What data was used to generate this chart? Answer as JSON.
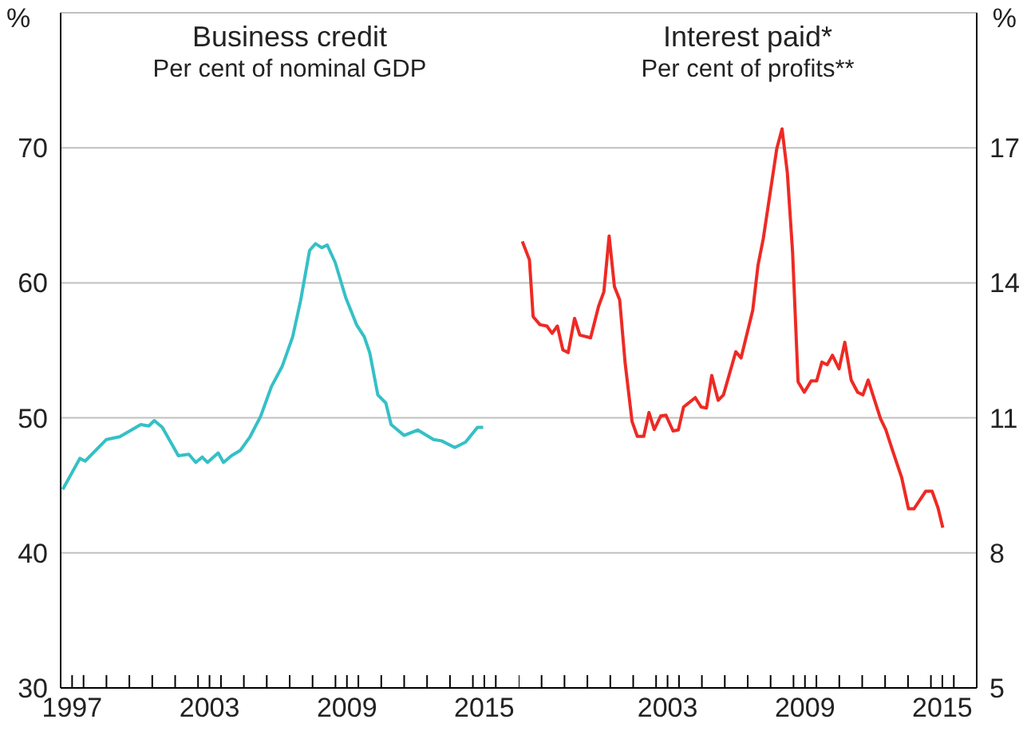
{
  "chart_data": [
    {
      "type": "line",
      "title": "Business credit",
      "subtitle": "Per cent of nominal GDP",
      "ylabel": "%",
      "grid": "y",
      "xlim": [
        1996.5,
        2016.5
      ],
      "xticks": [
        {
          "value": 1996.5,
          "label": null
        },
        1997,
        {
          "value": 1997.5,
          "label": null
        },
        {
          "value": 1998.5,
          "label": null
        },
        {
          "value": 1999.5,
          "label": null
        },
        {
          "value": 2000.5,
          "label": null
        },
        {
          "value": 2001.5,
          "label": null
        },
        {
          "value": 2002.5,
          "label": null
        },
        2003,
        {
          "value": 2003.5,
          "label": null
        },
        {
          "value": 2004.5,
          "label": null
        },
        {
          "value": 2005.5,
          "label": null
        },
        {
          "value": 2006.5,
          "label": null
        },
        {
          "value": 2007.5,
          "label": null
        },
        {
          "value": 2008.5,
          "label": null
        },
        2009,
        {
          "value": 2009.5,
          "label": null
        },
        {
          "value": 2010.5,
          "label": null
        },
        {
          "value": 2011.5,
          "label": null
        },
        {
          "value": 2012.5,
          "label": null
        },
        {
          "value": 2013.5,
          "label": null
        },
        {
          "value": 2014.5,
          "label": null
        },
        2015,
        {
          "value": 2015.5,
          "label": null
        }
      ],
      "ylim": [
        30,
        80
      ],
      "yticks": [
        30,
        40,
        50,
        60,
        70
      ],
      "series": [
        {
          "color": "#35c0c6",
          "x": [
            1996.59,
            1997.34,
            1997.57,
            1998.5,
            1999.08,
            2000.0,
            2000.35,
            2000.59,
            2000.94,
            2001.64,
            2002.1,
            2002.4,
            2002.68,
            2002.91,
            2003.38,
            2003.61,
            2003.96,
            2004.35,
            2004.77,
            2005.23,
            2005.7,
            2006.17,
            2006.63,
            2006.98,
            2007.37,
            2007.63,
            2007.9,
            2008.14,
            2008.49,
            2008.95,
            2009.42,
            2009.76,
            2010.0,
            2010.35,
            2010.7,
            2010.93,
            2011.5,
            2012.09,
            2012.78,
            2013.13,
            2013.71,
            2014.18,
            2014.7,
            2014.95
          ],
          "values": [
            44.7,
            47.0,
            46.8,
            48.4,
            48.6,
            49.5,
            49.4,
            49.8,
            49.3,
            47.2,
            47.3,
            46.7,
            47.1,
            46.7,
            47.4,
            46.7,
            47.2,
            47.6,
            48.6,
            50.1,
            52.3,
            53.8,
            56.0,
            58.7,
            62.4,
            62.9,
            62.6,
            62.8,
            61.5,
            58.9,
            56.9,
            56.0,
            54.8,
            51.7,
            51.1,
            49.5,
            48.7,
            49.1,
            48.4,
            48.3,
            47.8,
            48.2,
            49.3,
            49.3
          ]
        }
      ]
    },
    {
      "type": "line",
      "title": "Interest paid*",
      "subtitle": "Per cent of profits**",
      "y2label": "%",
      "grid": "y",
      "xlim": [
        1996.5,
        2016.5
      ],
      "xticks": [
        {
          "value": 1996.5,
          "label": null
        },
        {
          "value": 1997.5,
          "label": null
        },
        {
          "value": 1998.5,
          "label": null
        },
        {
          "value": 1999.5,
          "label": null
        },
        {
          "value": 2000.5,
          "label": null
        },
        {
          "value": 2001.5,
          "label": null
        },
        {
          "value": 2002.5,
          "label": null
        },
        2003,
        {
          "value": 2003.5,
          "label": null
        },
        {
          "value": 2004.5,
          "label": null
        },
        {
          "value": 2005.5,
          "label": null
        },
        {
          "value": 2006.5,
          "label": null
        },
        {
          "value": 2007.5,
          "label": null
        },
        {
          "value": 2008.5,
          "label": null
        },
        2009,
        {
          "value": 2009.5,
          "label": null
        },
        {
          "value": 2010.5,
          "label": null
        },
        {
          "value": 2011.5,
          "label": null
        },
        {
          "value": 2012.5,
          "label": null
        },
        {
          "value": 2013.5,
          "label": null
        },
        {
          "value": 2014.5,
          "label": null
        },
        2015,
        {
          "value": 2015.5,
          "label": null
        }
      ],
      "y2lim": [
        5,
        20
      ],
      "y2ticks": [
        5,
        8,
        11,
        14,
        17
      ],
      "series": [
        {
          "color": "#ee2a24",
          "axis": "y2",
          "x": [
            1996.66,
            1996.97,
            1997.13,
            1997.43,
            1997.73,
            1997.96,
            1998.19,
            1998.43,
            1998.66,
            1998.94,
            1999.17,
            1999.64,
            1999.99,
            2000.22,
            2000.45,
            2000.68,
            2000.91,
            2001.15,
            2001.45,
            2001.68,
            2001.96,
            2002.19,
            2002.42,
            2002.7,
            2002.93,
            2003.24,
            2003.47,
            2003.7,
            2004.21,
            2004.47,
            2004.7,
            2004.93,
            2005.21,
            2005.44,
            2005.98,
            2006.21,
            2006.72,
            2006.95,
            2007.18,
            2007.77,
            2008.0,
            2008.23,
            2008.46,
            2008.7,
            2008.97,
            2009.27,
            2009.51,
            2009.74,
            2009.97,
            2010.2,
            2010.49,
            2010.74,
            2011.02,
            2011.3,
            2011.53,
            2011.76,
            2012.3,
            2012.53,
            2012.83,
            2013.22,
            2013.52,
            2013.76,
            2014.27,
            2014.55,
            2014.81,
            2015.02
          ],
          "values": [
            14.92,
            14.51,
            13.25,
            13.07,
            13.04,
            12.88,
            13.04,
            12.51,
            12.45,
            13.21,
            12.84,
            12.78,
            13.48,
            13.8,
            15.04,
            13.92,
            13.62,
            12.21,
            10.92,
            10.59,
            10.59,
            11.12,
            10.74,
            11.04,
            11.06,
            10.71,
            10.73,
            11.24,
            11.45,
            11.24,
            11.22,
            11.94,
            11.39,
            11.51,
            12.47,
            12.33,
            13.39,
            14.39,
            14.98,
            16.98,
            17.42,
            16.45,
            14.68,
            11.8,
            11.57,
            11.82,
            11.82,
            12.24,
            12.18,
            12.39,
            12.09,
            12.68,
            11.84,
            11.57,
            11.51,
            11.84,
            10.98,
            10.74,
            10.27,
            9.68,
            8.98,
            8.98,
            9.37,
            9.37,
            9.0,
            8.56
          ]
        }
      ]
    }
  ]
}
